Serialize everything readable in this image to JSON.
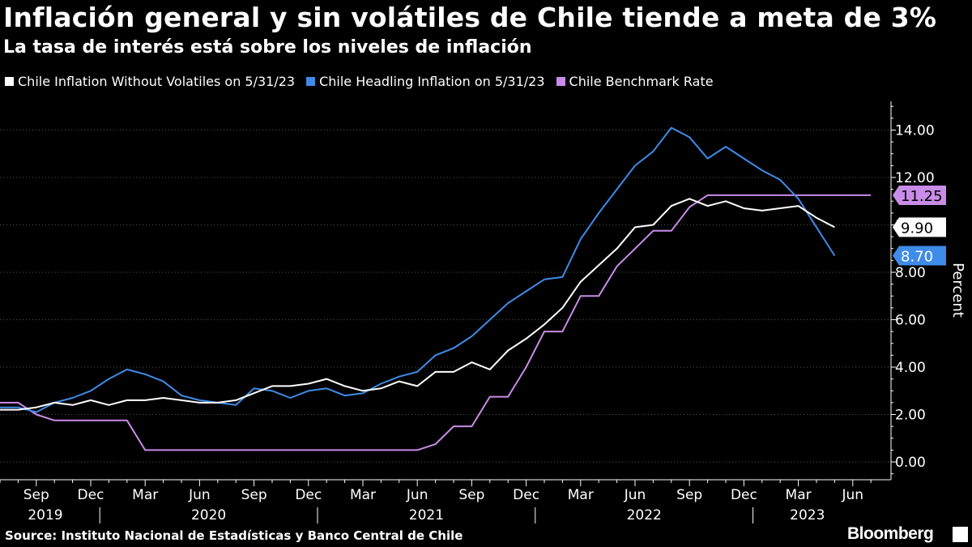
{
  "title": "Inflación general y sin volátiles de Chile tiende a meta de 3%",
  "subtitle": "La tasa de interés está sobre los niveles de inflación",
  "source": "Source: Instituto Nacional de Estadísticas y Banco Central de Chile",
  "brand": "Bloomberg",
  "chart_data": {
    "type": "line",
    "ylabel": "Percent",
    "ylim": [
      -1,
      15.5
    ],
    "x_start": "2019-07",
    "y_ticks": [
      "0.00",
      "2.00",
      "4.00",
      "6.00",
      "8.00",
      "10.00",
      "12.00",
      "14.00"
    ],
    "x_ticks": [
      {
        "label": "Sep",
        "i": 2
      },
      {
        "label": "Dec",
        "i": 5
      },
      {
        "label": "Mar",
        "i": 8
      },
      {
        "label": "Jun",
        "i": 11
      },
      {
        "label": "Sep",
        "i": 14
      },
      {
        "label": "Dec",
        "i": 17
      },
      {
        "label": "Mar",
        "i": 20
      },
      {
        "label": "Jun",
        "i": 23
      },
      {
        "label": "Sep",
        "i": 26
      },
      {
        "label": "Dec",
        "i": 29
      },
      {
        "label": "Mar",
        "i": 32
      },
      {
        "label": "Jun",
        "i": 35
      },
      {
        "label": "Sep",
        "i": 38
      },
      {
        "label": "Dec",
        "i": 41
      },
      {
        "label": "Mar",
        "i": 44
      },
      {
        "label": "Jun",
        "i": 47
      }
    ],
    "years": [
      {
        "label": "2019",
        "i": 2.5
      },
      {
        "label": "2020",
        "i": 11.5
      },
      {
        "label": "2021",
        "i": 23.5
      },
      {
        "label": "2022",
        "i": 35.5
      },
      {
        "label": "2023",
        "i": 44.5
      }
    ],
    "year_dividers": [
      5.5,
      17.5,
      29.5,
      41.5
    ],
    "series": [
      {
        "name": "Chile Inflation Without Volatiles on 5/31/23",
        "color": "#ffffff",
        "last_label": "9.90",
        "values": [
          2.2,
          2.2,
          2.3,
          2.5,
          2.4,
          2.6,
          2.4,
          2.6,
          2.6,
          2.7,
          2.6,
          2.5,
          2.5,
          2.6,
          2.9,
          3.2,
          3.2,
          3.3,
          3.5,
          3.2,
          3.0,
          3.1,
          3.4,
          3.2,
          3.8,
          3.8,
          4.2,
          3.9,
          4.7,
          5.2,
          5.8,
          6.5,
          7.6,
          8.3,
          9.0,
          9.9,
          10.0,
          10.8,
          11.1,
          10.8,
          11.0,
          10.7,
          10.6,
          10.7,
          10.8,
          10.3,
          9.9
        ]
      },
      {
        "name": "Chile Headling Inflation on 5/31/23",
        "color": "#3f8be8",
        "last_label": "8.70",
        "values": [
          2.3,
          2.3,
          2.1,
          2.5,
          2.7,
          3.0,
          3.5,
          3.9,
          3.7,
          3.4,
          2.8,
          2.6,
          2.5,
          2.4,
          3.1,
          3.0,
          2.7,
          3.0,
          3.1,
          2.8,
          2.9,
          3.3,
          3.6,
          3.8,
          4.5,
          4.8,
          5.3,
          6.0,
          6.7,
          7.2,
          7.7,
          7.8,
          9.4,
          10.5,
          11.5,
          12.5,
          13.1,
          14.1,
          13.7,
          12.8,
          13.3,
          12.8,
          12.3,
          11.9,
          11.1,
          9.9,
          8.7
        ]
      },
      {
        "name": "Chile Benchmark Rate",
        "color": "#c98ce8",
        "last_label": "11.25",
        "values": [
          2.5,
          2.5,
          2.0,
          1.75,
          1.75,
          1.75,
          1.75,
          1.75,
          0.5,
          0.5,
          0.5,
          0.5,
          0.5,
          0.5,
          0.5,
          0.5,
          0.5,
          0.5,
          0.5,
          0.5,
          0.5,
          0.5,
          0.5,
          0.5,
          0.75,
          1.5,
          1.5,
          2.75,
          2.75,
          4.0,
          5.5,
          5.5,
          7.0,
          7.0,
          8.25,
          9.0,
          9.75,
          9.75,
          10.75,
          11.25,
          11.25,
          11.25,
          11.25,
          11.25,
          11.25,
          11.25,
          11.25,
          11.25,
          11.25
        ]
      }
    ]
  }
}
